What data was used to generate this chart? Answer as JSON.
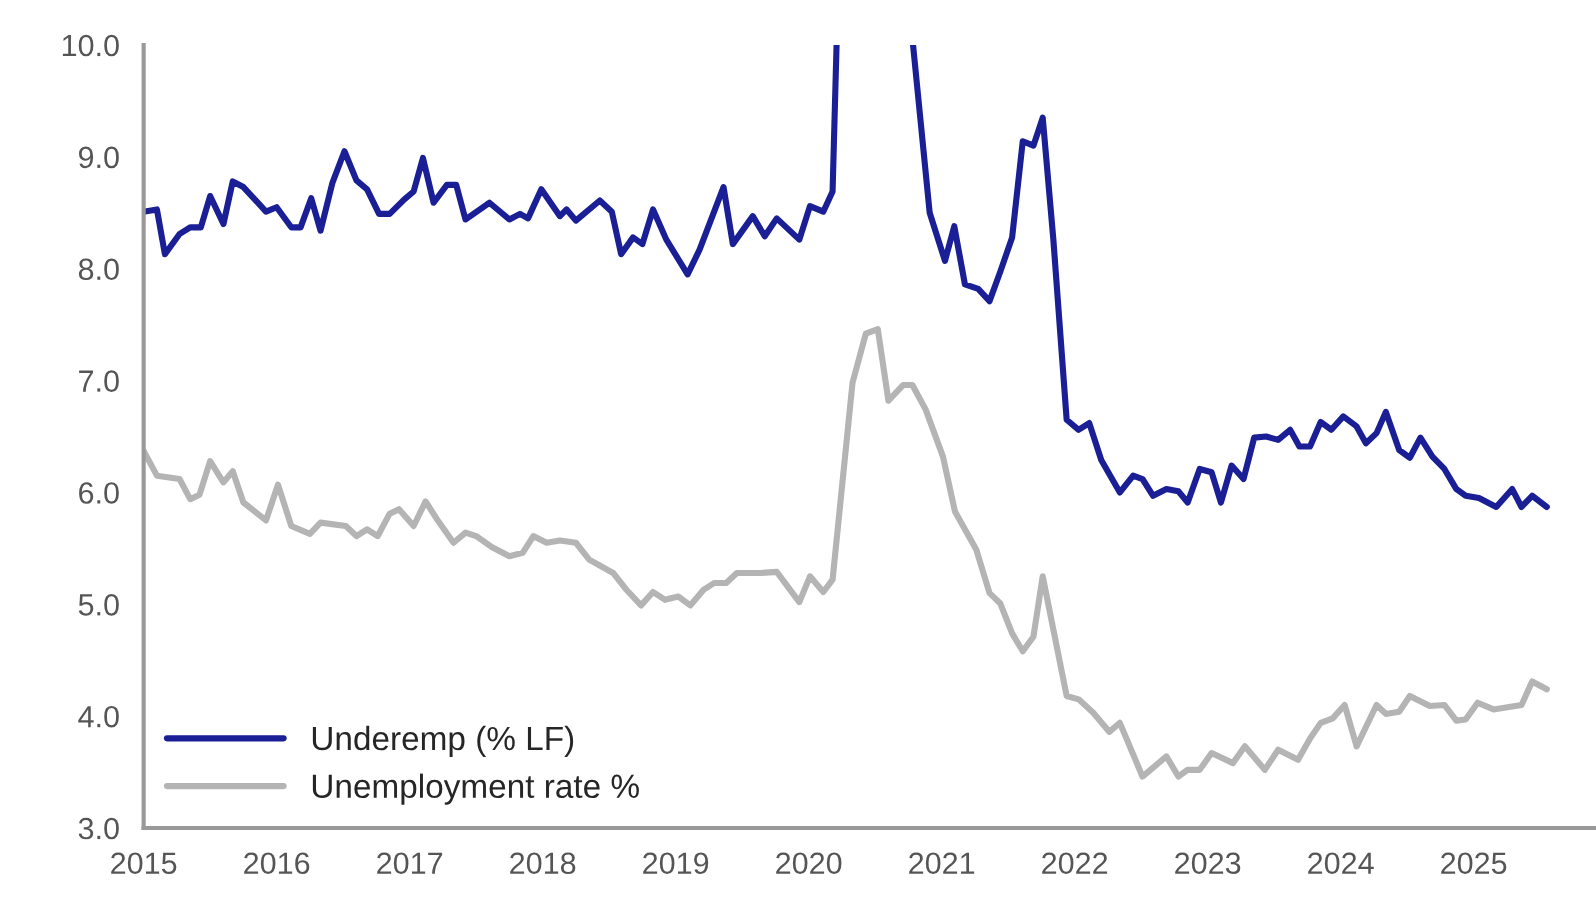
{
  "chart_data": {
    "type": "line",
    "xlim": [
      2015,
      2025.92
    ],
    "xticks": [
      2015,
      2016,
      2017,
      2018,
      2019,
      2020,
      2021,
      2022,
      2023,
      2024,
      2025
    ],
    "ylim": [
      3,
      10
    ],
    "yticks": [
      {
        "value": 3,
        "label": "3.0"
      },
      {
        "value": 4,
        "label": "4.0"
      },
      {
        "value": 5,
        "label": "5.0"
      },
      {
        "value": 6,
        "label": "6.0"
      },
      {
        "value": 7,
        "label": "7.0"
      },
      {
        "value": 8,
        "label": "8.0"
      },
      {
        "value": 9,
        "label": "9.0"
      },
      {
        "value": 10,
        "label": "10.0"
      }
    ],
    "grid": false,
    "legend": "bottom left",
    "marker": "none",
    "line_style": "solid",
    "series": [
      {
        "name": "Underemp (% LF)",
        "color": "#1a1f96",
        "x": [
          2015.0,
          2015.1,
          2015.16,
          2015.27,
          2015.35,
          2015.43,
          2015.5,
          2015.6,
          2015.67,
          2015.75,
          2015.92,
          2016.0,
          2016.11,
          2016.18,
          2016.26,
          2016.33,
          2016.42,
          2016.51,
          2016.6,
          2016.68,
          2016.77,
          2016.85,
          2016.96,
          2017.03,
          2017.1,
          2017.18,
          2017.28,
          2017.35,
          2017.42,
          2017.6,
          2017.75,
          2017.83,
          2017.89,
          2017.99,
          2018.13,
          2018.18,
          2018.25,
          2018.43,
          2018.52,
          2018.59,
          2018.68,
          2018.75,
          2018.83,
          2018.93,
          2019.09,
          2019.18,
          2019.36,
          2019.43,
          2019.58,
          2019.67,
          2019.76,
          2019.93,
          2020.01,
          2020.11,
          2020.18,
          2020.21,
          2020.5,
          2020.785,
          2020.91,
          2021.025,
          2021.095,
          2021.175,
          2021.275,
          2021.36,
          2021.44,
          2021.53,
          2021.61,
          2021.69,
          2021.76,
          2021.84,
          2021.94,
          2022.03,
          2022.11,
          2022.2,
          2022.34,
          2022.44,
          2022.51,
          2022.59,
          2022.69,
          2022.78,
          2022.85,
          2022.94,
          2023.03,
          2023.1,
          2023.18,
          2023.27,
          2023.35,
          2023.44,
          2023.53,
          2023.62,
          2023.69,
          2023.77,
          2023.85,
          2023.93,
          2024.02,
          2024.12,
          2024.19,
          2024.27,
          2024.34,
          2024.44,
          2024.52,
          2024.6,
          2024.69,
          2024.78,
          2024.87,
          2024.94,
          2025.04,
          2025.17,
          2025.29,
          2025.36,
          2025.44,
          2025.55
        ],
        "values": [
          8.51,
          8.53,
          8.13,
          8.31,
          8.37,
          8.37,
          8.65,
          8.4,
          8.78,
          8.73,
          8.51,
          8.55,
          8.37,
          8.37,
          8.63,
          8.34,
          8.77,
          9.05,
          8.79,
          8.71,
          8.49,
          8.49,
          8.62,
          8.69,
          8.99,
          8.59,
          8.75,
          8.75,
          8.44,
          8.59,
          8.44,
          8.49,
          8.45,
          8.71,
          8.47,
          8.53,
          8.43,
          8.61,
          8.51,
          8.13,
          8.28,
          8.22,
          8.53,
          8.26,
          7.95,
          8.17,
          8.73,
          8.22,
          8.47,
          8.29,
          8.45,
          8.26,
          8.56,
          8.51,
          8.69,
          10.0,
          null,
          10.0,
          8.5,
          8.07,
          8.38,
          7.86,
          7.82,
          7.71,
          7.97,
          8.28,
          9.14,
          9.1,
          9.35,
          8.26,
          6.65,
          6.56,
          6.62,
          6.29,
          6.0,
          6.15,
          6.12,
          5.97,
          6.03,
          6.01,
          5.91,
          6.21,
          6.18,
          5.91,
          6.24,
          6.12,
          6.49,
          6.5,
          6.47,
          6.56,
          6.41,
          6.41,
          6.63,
          6.56,
          6.68,
          6.59,
          6.44,
          6.53,
          6.72,
          6.38,
          6.31,
          6.49,
          6.32,
          6.21,
          6.03,
          5.97,
          5.95,
          5.87,
          6.03,
          5.87,
          5.97,
          5.87
        ]
      },
      {
        "name": "Unemployment rate %",
        "color": "#b4b4b4",
        "x": [
          2015.0,
          2015.1,
          2015.27,
          2015.35,
          2015.42,
          2015.5,
          2015.6,
          2015.67,
          2015.75,
          2015.92,
          2016.01,
          2016.11,
          2016.25,
          2016.33,
          2016.52,
          2016.6,
          2016.68,
          2016.76,
          2016.85,
          2016.92,
          2017.03,
          2017.12,
          2017.2,
          2017.33,
          2017.42,
          2017.5,
          2017.62,
          2017.75,
          2017.85,
          2017.93,
          2018.03,
          2018.13,
          2018.25,
          2018.35,
          2018.53,
          2018.63,
          2018.74,
          2018.83,
          2018.92,
          2019.02,
          2019.11,
          2019.21,
          2019.29,
          2019.38,
          2019.46,
          2019.64,
          2019.76,
          2019.93,
          2020.01,
          2020.11,
          2020.18,
          2020.33,
          2020.43,
          2020.52,
          2020.6,
          2020.71,
          2020.78,
          2020.88,
          2021.01,
          2021.1,
          2021.26,
          2021.36,
          2021.44,
          2021.53,
          2021.61,
          2021.69,
          2021.76,
          2021.94,
          2022.03,
          2022.14,
          2022.26,
          2022.34,
          2022.51,
          2022.69,
          2022.78,
          2022.85,
          2022.94,
          2023.03,
          2023.19,
          2023.28,
          2023.43,
          2023.53,
          2023.68,
          2023.77,
          2023.85,
          2023.94,
          2024.03,
          2024.12,
          2024.27,
          2024.34,
          2024.44,
          2024.52,
          2024.67,
          2024.78,
          2024.87,
          2024.94,
          2025.03,
          2025.15,
          2025.36,
          2025.44,
          2025.55
        ],
        "values": [
          6.37,
          6.15,
          6.12,
          5.94,
          5.98,
          6.28,
          6.09,
          6.19,
          5.91,
          5.75,
          6.07,
          5.7,
          5.63,
          5.73,
          5.7,
          5.61,
          5.67,
          5.61,
          5.81,
          5.85,
          5.7,
          5.92,
          5.77,
          5.55,
          5.64,
          5.61,
          5.51,
          5.43,
          5.46,
          5.61,
          5.55,
          5.57,
          5.55,
          5.4,
          5.28,
          5.13,
          4.99,
          5.11,
          5.04,
          5.07,
          4.99,
          5.13,
          5.19,
          5.19,
          5.28,
          5.28,
          5.29,
          5.02,
          5.25,
          5.11,
          5.22,
          6.98,
          7.42,
          7.46,
          6.82,
          6.96,
          6.96,
          6.74,
          6.32,
          5.83,
          5.49,
          5.1,
          5.01,
          4.74,
          4.58,
          4.71,
          5.25,
          4.18,
          4.15,
          4.03,
          3.86,
          3.94,
          3.46,
          3.64,
          3.46,
          3.52,
          3.52,
          3.67,
          3.58,
          3.73,
          3.52,
          3.7,
          3.61,
          3.8,
          3.94,
          3.98,
          4.1,
          3.73,
          4.1,
          4.02,
          4.04,
          4.18,
          4.09,
          4.1,
          3.96,
          3.97,
          4.12,
          4.06,
          4.1,
          4.31,
          4.24
        ]
      }
    ]
  }
}
